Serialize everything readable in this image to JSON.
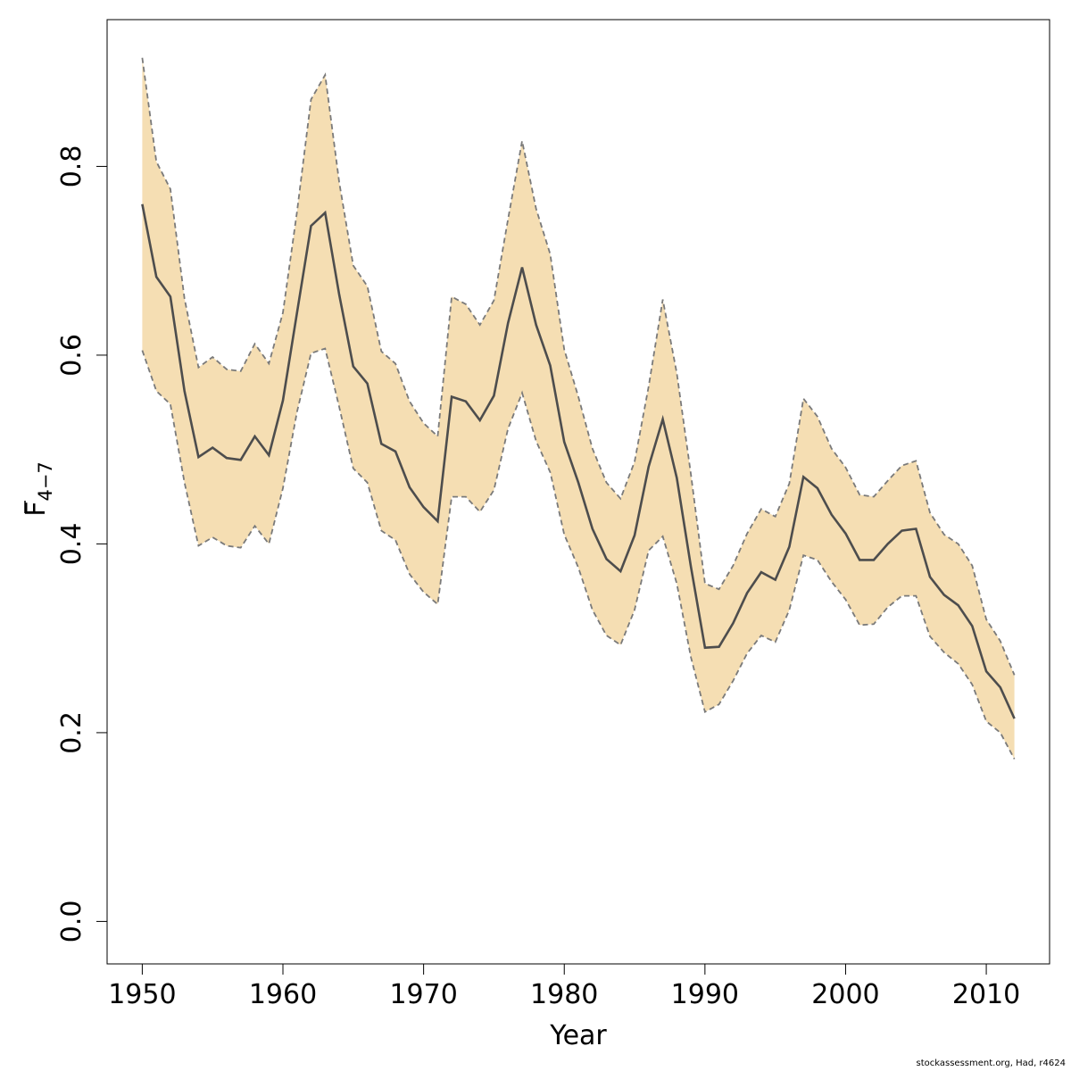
{
  "chart_data": {
    "type": "line",
    "x": [
      1950,
      1951,
      1952,
      1953,
      1954,
      1955,
      1956,
      1957,
      1958,
      1959,
      1960,
      1961,
      1962,
      1963,
      1964,
      1965,
      1966,
      1967,
      1968,
      1969,
      1970,
      1971,
      1972,
      1973,
      1974,
      1975,
      1976,
      1977,
      1978,
      1979,
      1980,
      1981,
      1982,
      1983,
      1984,
      1985,
      1986,
      1987,
      1988,
      1989,
      1990,
      1991,
      1992,
      1993,
      1994,
      1995,
      1996,
      1997,
      1998,
      1999,
      2000,
      2001,
      2002,
      2003,
      2004,
      2005,
      2006,
      2007,
      2008,
      2009,
      2010,
      2011,
      2012
    ],
    "series": [
      {
        "role": "estimate",
        "values": [
          0.76,
          0.683,
          0.662,
          0.562,
          0.492,
          0.502,
          0.491,
          0.489,
          0.514,
          0.494,
          0.552,
          0.645,
          0.737,
          0.751,
          0.664,
          0.588,
          0.57,
          0.506,
          0.498,
          0.46,
          0.439,
          0.424,
          0.556,
          0.551,
          0.531,
          0.557,
          0.634,
          0.693,
          0.632,
          0.589,
          0.508,
          0.465,
          0.416,
          0.384,
          0.371,
          0.409,
          0.482,
          0.532,
          0.47,
          0.376,
          0.29,
          0.291,
          0.316,
          0.348,
          0.37,
          0.362,
          0.397,
          0.471,
          0.459,
          0.431,
          0.411,
          0.383,
          0.383,
          0.4,
          0.414,
          0.416,
          0.365,
          0.346,
          0.335,
          0.313,
          0.265,
          0.248,
          0.215
        ]
      },
      {
        "role": "upper",
        "values": [
          0.915,
          0.805,
          0.776,
          0.66,
          0.587,
          0.598,
          0.585,
          0.583,
          0.612,
          0.591,
          0.645,
          0.752,
          0.871,
          0.897,
          0.783,
          0.695,
          0.673,
          0.604,
          0.591,
          0.551,
          0.528,
          0.514,
          0.662,
          0.654,
          0.632,
          0.658,
          0.744,
          0.827,
          0.755,
          0.707,
          0.606,
          0.556,
          0.501,
          0.465,
          0.448,
          0.487,
          0.567,
          0.659,
          0.581,
          0.474,
          0.358,
          0.352,
          0.377,
          0.411,
          0.437,
          0.429,
          0.464,
          0.554,
          0.535,
          0.501,
          0.481,
          0.452,
          0.45,
          0.467,
          0.483,
          0.488,
          0.433,
          0.41,
          0.4,
          0.377,
          0.32,
          0.297,
          0.261
        ]
      },
      {
        "role": "lower",
        "values": [
          0.605,
          0.562,
          0.548,
          0.465,
          0.398,
          0.407,
          0.398,
          0.396,
          0.419,
          0.4,
          0.459,
          0.54,
          0.602,
          0.607,
          0.545,
          0.48,
          0.465,
          0.414,
          0.404,
          0.368,
          0.349,
          0.336,
          0.45,
          0.45,
          0.434,
          0.457,
          0.522,
          0.56,
          0.509,
          0.476,
          0.41,
          0.375,
          0.33,
          0.303,
          0.293,
          0.33,
          0.393,
          0.408,
          0.358,
          0.28,
          0.222,
          0.23,
          0.255,
          0.284,
          0.303,
          0.296,
          0.33,
          0.388,
          0.383,
          0.36,
          0.341,
          0.314,
          0.315,
          0.333,
          0.345,
          0.345,
          0.302,
          0.285,
          0.273,
          0.251,
          0.212,
          0.2,
          0.172
        ]
      }
    ],
    "xlabel": "Year",
    "ylabel": "F",
    "ylabel_overline": true,
    "ylabel_subscript": "4−7",
    "xlim": [
      1947.5,
      2014.5
    ],
    "ylim": [
      -0.045,
      0.9555
    ],
    "xticks": [
      "1950",
      "1960",
      "1970",
      "1980",
      "1990",
      "2000",
      "2010"
    ],
    "yticks": [
      "0.0",
      "0.2",
      "0.4",
      "0.6",
      "0.8"
    ],
    "grid": false,
    "colors": {
      "band": "#F5DEB3",
      "band_edge": "#7A7A7A",
      "line": "#4D4D4D",
      "axis": "#000000"
    }
  },
  "footer": {
    "credit": "stockassessment.org, Had, r4624"
  }
}
